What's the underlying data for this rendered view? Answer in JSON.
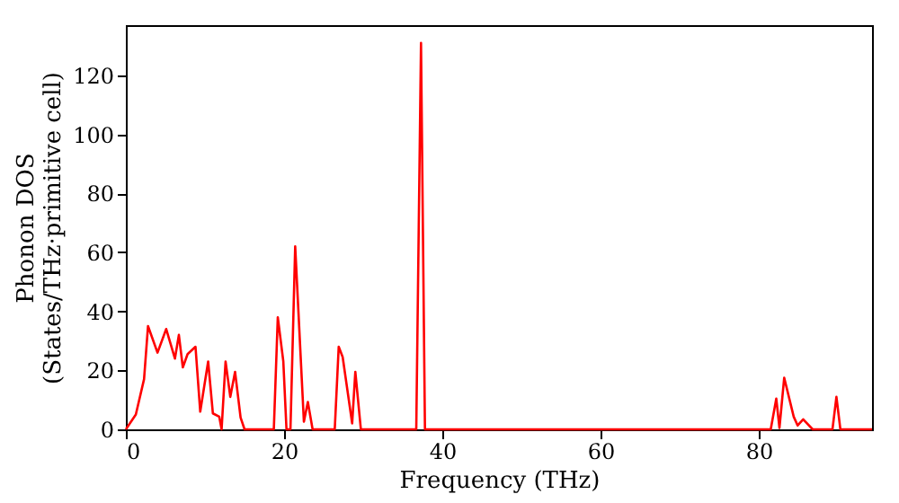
{
  "chart_data": {
    "type": "line",
    "xlabel": "Frequency (THz)",
    "ylabel": "Phonon DOS\n(States/THz·primitive cell)",
    "xlim": [
      0,
      94.3
    ],
    "ylim": [
      0,
      137
    ],
    "xticks": [
      0,
      20,
      40,
      60,
      80
    ],
    "yticks": [
      0,
      20,
      40,
      60,
      80,
      100,
      120
    ],
    "grid": false,
    "series": [
      {
        "color": "#ff0000",
        "x": [
          0,
          1.26,
          2.3,
          2.8,
          4.0,
          5.1,
          6.2,
          6.7,
          7.2,
          7.8,
          8.8,
          9.4,
          10.4,
          11.0,
          11.8,
          12.1,
          12.6,
          13.2,
          13.8,
          14.5,
          15.0,
          18.7,
          19.2,
          19.9,
          20.3,
          20.8,
          21.4,
          22.5,
          23.0,
          23.6,
          26.4,
          26.9,
          27.4,
          28.6,
          29.0,
          29.7,
          36.7,
          37.3,
          37.8,
          81.5,
          82.2,
          82.6,
          83.2,
          84.4,
          84.9,
          85.6,
          86.8,
          89.3,
          89.8,
          90.3,
          94.3
        ],
        "values": [
          0,
          5,
          17,
          35,
          26,
          34,
          24,
          32,
          21,
          25.5,
          28,
          6,
          23,
          5.4,
          4.3,
          0,
          23,
          11,
          19.5,
          4,
          0,
          0,
          38,
          23,
          0,
          0,
          62,
          2.6,
          9.3,
          0,
          0,
          28,
          24.5,
          2,
          19.5,
          0,
          0,
          131,
          0,
          0,
          10.4,
          0.5,
          17.5,
          4.3,
          1.3,
          3.4,
          0,
          0,
          11,
          0,
          0
        ]
      }
    ]
  }
}
